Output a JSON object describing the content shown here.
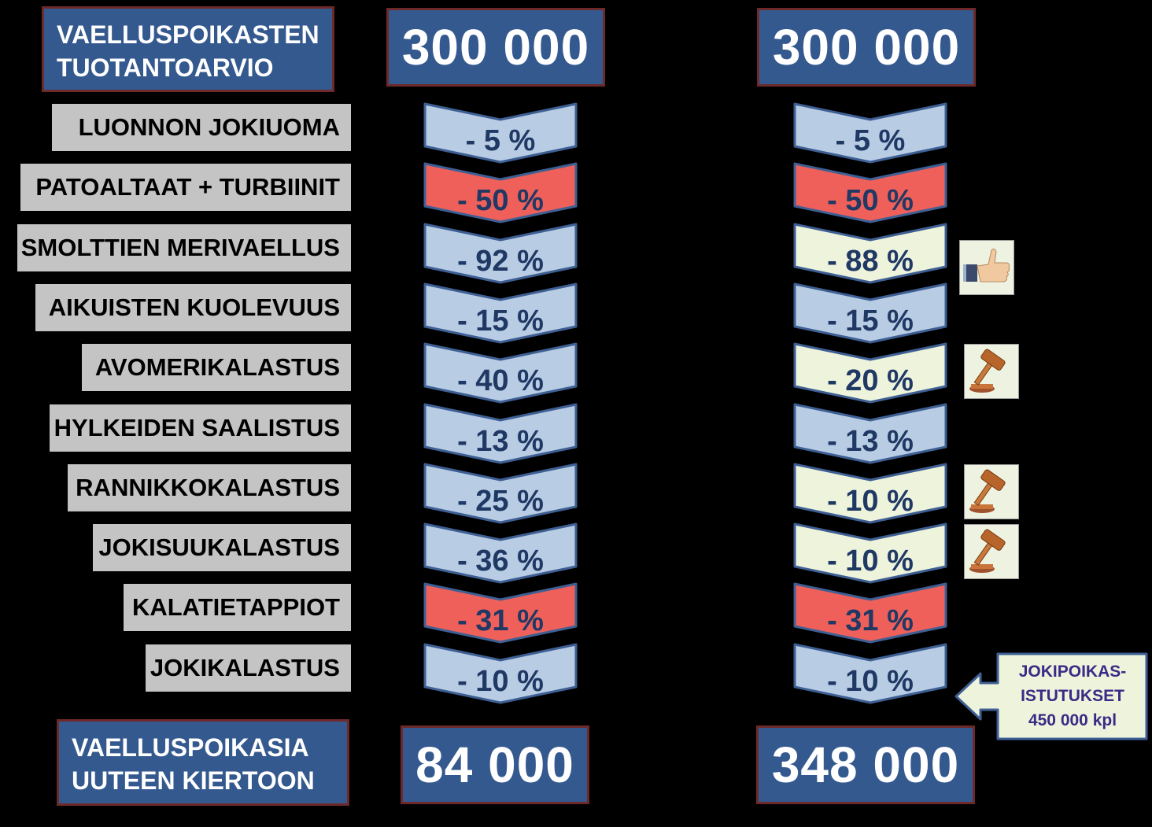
{
  "header": {
    "title_lines": [
      "VAELLUSPOIKASTEN",
      "TUOTANTOARVIO"
    ],
    "left_start": "300 000",
    "right_start": "300 000"
  },
  "footer": {
    "title_lines": [
      "VAELLUSPOIKASIA",
      "UUTEEN KIERTOON"
    ],
    "left_result": "84 000",
    "right_result": "348 000"
  },
  "rows": [
    {
      "label": "LUONNON JOKIUOMA",
      "left": "- 5 %",
      "right": "- 5 %",
      "left_style": "blue",
      "right_style": "blue",
      "icon": ""
    },
    {
      "label": "PATOALTAAT + TURBIINIT",
      "left": "- 50 %",
      "right": "- 50 %",
      "left_style": "red",
      "right_style": "red",
      "icon": ""
    },
    {
      "label": "SMOLTTIEN MERIVAELLUS",
      "left": "- 92 %",
      "right": "- 88 %",
      "left_style": "blue",
      "right_style": "cream",
      "icon": "thumbs-up-icon"
    },
    {
      "label": "AIKUISTEN KUOLEVUUS",
      "left": "- 15 %",
      "right": "- 15 %",
      "left_style": "blue",
      "right_style": "blue",
      "icon": ""
    },
    {
      "label": "AVOMERIKALASTUS",
      "left": "- 40 %",
      "right": "- 20 %",
      "left_style": "blue",
      "right_style": "cream",
      "icon": "gavel-icon"
    },
    {
      "label": "HYLKEIDEN SAALISTUS",
      "left": "- 13 %",
      "right": "- 13 %",
      "left_style": "blue",
      "right_style": "blue",
      "icon": ""
    },
    {
      "label": "RANNIKKOKALASTUS",
      "left": "- 25 %",
      "right": "- 10 %",
      "left_style": "blue",
      "right_style": "cream",
      "icon": "gavel-icon"
    },
    {
      "label": "JOKISUUKALASTUS",
      "left": "- 36 %",
      "right": "- 10 %",
      "left_style": "blue",
      "right_style": "cream",
      "icon": "gavel-icon"
    },
    {
      "label": "KALATIETAPPIOT",
      "left": "- 31 %",
      "right": "- 31 %",
      "left_style": "red",
      "right_style": "red",
      "icon": ""
    },
    {
      "label": "JOKIKALASTUS",
      "left": "- 10 %",
      "right": "- 10 %",
      "left_style": "blue",
      "right_style": "blue",
      "icon": ""
    }
  ],
  "callout": {
    "lines": [
      "JOKIPOIKAS-",
      "ISTUTUKSET",
      "450 000 kpl"
    ]
  },
  "colors": {
    "blue": "#b8cce4",
    "red": "#f0605a",
    "cream": "#eef3dc",
    "box_fill": "#34598f",
    "box_border": "#6e2a2a",
    "label_fill": "#c4c4c4",
    "chevron_border": "#3e5f93"
  }
}
